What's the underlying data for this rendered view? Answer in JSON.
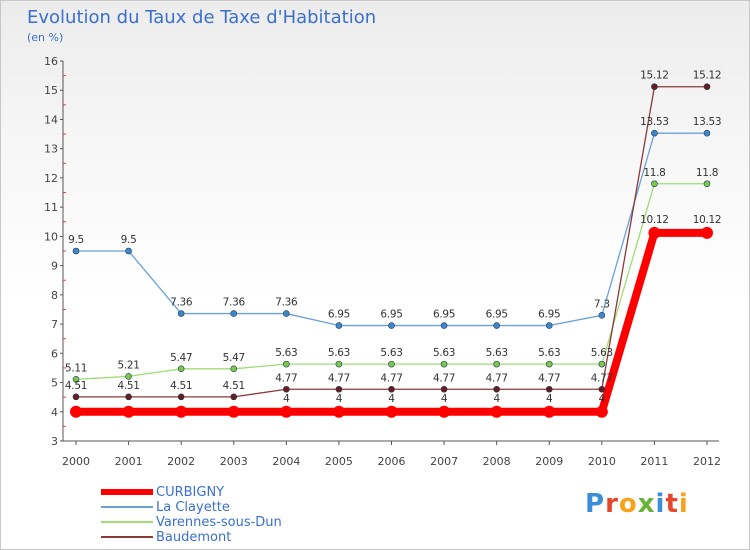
{
  "title": "Evolution du Taux de Taxe d'Habitation",
  "subtitle": "(en %)",
  "logo": {
    "text": "Proxiti",
    "letter_colors": [
      "#3b8fd8",
      "#e8462a",
      "#f7a21b",
      "#67b335",
      "#3b8fd8",
      "#e8462a",
      "#f7a21b"
    ]
  },
  "chart_data": {
    "type": "line",
    "title": "Evolution du Taux de Taxe d'Habitation",
    "ylabel": "(en %)",
    "xlabel": "",
    "x": [
      "2000",
      "2001",
      "2002",
      "2003",
      "2004",
      "2005",
      "2006",
      "2007",
      "2008",
      "2009",
      "2010",
      "2011",
      "2012"
    ],
    "ylim": [
      3,
      16
    ],
    "yticks": [
      "3",
      "4",
      "5",
      "6",
      "7",
      "8",
      "9",
      "10",
      "11",
      "12",
      "13",
      "14",
      "15",
      "16"
    ],
    "grid": false,
    "legend_position": "bottom-left",
    "series": [
      {
        "name": "CURBIGNY",
        "color": "#ff0000",
        "marker_color": "#ff0000",
        "values": [
          4,
          4,
          4,
          4,
          4,
          4,
          4,
          4,
          4,
          4,
          4,
          10.12,
          10.12
        ],
        "labels": [
          "",
          "",
          "",
          "",
          "4",
          "4",
          "4",
          "4",
          "4",
          "4",
          "4",
          "10.12",
          "10.12"
        ]
      },
      {
        "name": "La Clayette",
        "color": "#6aa1d8",
        "marker_color": "#3f87c9",
        "values": [
          9.5,
          9.5,
          7.36,
          7.36,
          7.36,
          6.95,
          6.95,
          6.95,
          6.95,
          6.95,
          7.3,
          13.53,
          13.53
        ],
        "labels": [
          "9.5",
          "9.5",
          "7.36",
          "7.36",
          "7.36",
          "6.95",
          "6.95",
          "6.95",
          "6.95",
          "6.95",
          "7.3",
          "13.53",
          "13.53"
        ]
      },
      {
        "name": "Varennes-sous-Dun",
        "color": "#9fde76",
        "marker_color": "#7cc94a",
        "values": [
          5.11,
          5.21,
          5.47,
          5.47,
          5.63,
          5.63,
          5.63,
          5.63,
          5.63,
          5.63,
          5.63,
          11.8,
          11.8
        ],
        "labels": [
          "5.11",
          "5.21",
          "5.47",
          "5.47",
          "5.63",
          "5.63",
          "5.63",
          "5.63",
          "5.63",
          "5.63",
          "5.63",
          "11.8",
          "11.8"
        ]
      },
      {
        "name": "Baudemont",
        "color": "#8a3a3a",
        "marker_color": "#6a1c1c",
        "values": [
          4.51,
          4.51,
          4.51,
          4.51,
          4.77,
          4.77,
          4.77,
          4.77,
          4.77,
          4.77,
          4.77,
          15.12,
          15.12
        ],
        "labels": [
          "4.51",
          "4.51",
          "4.51",
          "4.51",
          "4.77",
          "4.77",
          "4.77",
          "4.77",
          "4.77",
          "4.77",
          "4.77",
          "15.12",
          "15.12"
        ]
      }
    ]
  }
}
